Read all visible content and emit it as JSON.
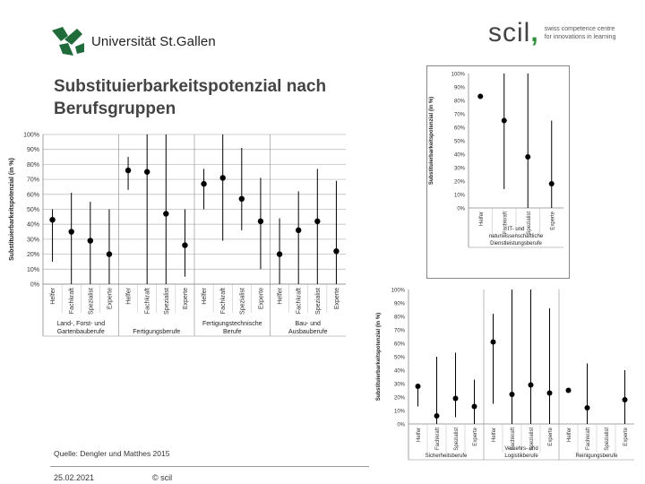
{
  "header": {
    "university_name": "Universität St.Gallen",
    "scil_word": "scil",
    "scil_tagline": "swiss competence centre for innovations in learning"
  },
  "slide": {
    "title_line1": "Substituierbarkeitspotenzial nach",
    "title_line2": "Berufsgruppen"
  },
  "footer": {
    "source": "Quelle: Dengler und Matthes 2015",
    "date": "25.02.2021",
    "copyright": "© scil"
  },
  "colors": {
    "grid": "#bfbfbf",
    "marker": "#000000",
    "scil_accent": "#2f8f3a",
    "usg_green": "#1f6b3a"
  },
  "chart_data": [
    {
      "type": "scatter",
      "ylabel": "Substituierbarkeitspotenzial (in %)",
      "ylim": [
        0,
        100
      ],
      "yticks": [
        "0%",
        "10%",
        "20%",
        "30%",
        "40%",
        "50%",
        "60%",
        "70%",
        "80%",
        "90%",
        "100%"
      ],
      "grid": true,
      "groups": [
        {
          "label": [
            "Land-, Forst- und",
            "Gartenbauberufe"
          ],
          "items": [
            {
              "level": "Helfer",
              "value": 43,
              "low": 15,
              "high": 50
            },
            {
              "level": "Fachkraft",
              "value": 35,
              "low": 0,
              "high": 61
            },
            {
              "level": "Spezialist",
              "value": 29,
              "low": 0,
              "high": 55
            },
            {
              "level": "Experte",
              "value": 20,
              "low": 0,
              "high": 50
            }
          ]
        },
        {
          "label": [
            "Fertigungsberufe"
          ],
          "items": [
            {
              "level": "Helfer",
              "value": 76,
              "low": 63,
              "high": 85
            },
            {
              "level": "Fachkraft",
              "value": 75,
              "low": 0,
              "high": 100
            },
            {
              "level": "Spezialist",
              "value": 47,
              "low": 0,
              "high": 100
            },
            {
              "level": "Experte",
              "value": 26,
              "low": 5,
              "high": 50
            }
          ]
        },
        {
          "label": [
            "Fertigungstechnische",
            "Berufe"
          ],
          "items": [
            {
              "level": "Helfer",
              "value": 67,
              "low": 50,
              "high": 77
            },
            {
              "level": "Fachkraft",
              "value": 71,
              "low": 29,
              "high": 100
            },
            {
              "level": "Spezialist",
              "value": 57,
              "low": 36,
              "high": 91
            },
            {
              "level": "Experte",
              "value": 42,
              "low": 10,
              "high": 71
            }
          ]
        },
        {
          "label": [
            "Bau- und",
            "Ausbauberufe"
          ],
          "items": [
            {
              "level": "Helfer",
              "value": 20,
              "low": 0,
              "high": 44
            },
            {
              "level": "Fachkraft",
              "value": 36,
              "low": 0,
              "high": 62
            },
            {
              "level": "Spezialist",
              "value": 42,
              "low": 0,
              "high": 77
            },
            {
              "level": "Experte",
              "value": 22,
              "low": 0,
              "high": 69
            }
          ]
        }
      ]
    },
    {
      "type": "scatter",
      "ylabel": "Substituierbarkeitspotenzial (in %)",
      "ylim": [
        0,
        100
      ],
      "yticks": [
        "0%",
        "10%",
        "20%",
        "30%",
        "40%",
        "50%",
        "60%",
        "70%",
        "80%",
        "90%",
        "100%"
      ],
      "grid": false,
      "groups": [
        {
          "label": [
            "IT- und",
            "naturwissenschaftliche",
            "Dienstleistungsberufe"
          ],
          "items": [
            {
              "level": "Helfer",
              "value": 83,
              "low": 83,
              "high": 83
            },
            {
              "level": "Fachkraft",
              "value": 65,
              "low": 14,
              "high": 100
            },
            {
              "level": "Spezialist",
              "value": 38,
              "low": 0,
              "high": 100
            },
            {
              "level": "Experte",
              "value": 18,
              "low": 0,
              "high": 65
            }
          ]
        }
      ]
    },
    {
      "type": "scatter",
      "ylabel": "Substituierbarkeitspotenzial (in %)",
      "ylim": [
        0,
        100
      ],
      "yticks": [
        "0%",
        "10%",
        "20%",
        "30%",
        "40%",
        "50%",
        "60%",
        "70%",
        "80%",
        "90%",
        "100%"
      ],
      "grid": false,
      "groups": [
        {
          "label": [
            "Sicherheitsberufe"
          ],
          "items": [
            {
              "level": "Helfer",
              "value": 28,
              "low": 13,
              "high": 30
            },
            {
              "level": "Fachkraft",
              "value": 6,
              "low": 0,
              "high": 50
            },
            {
              "level": "Spezialist",
              "value": 19,
              "low": 5,
              "high": 53
            },
            {
              "level": "Experte",
              "value": 13,
              "low": 0,
              "high": 33
            }
          ]
        },
        {
          "label": [
            "Verkehrs- und",
            "Logistikberufe"
          ],
          "items": [
            {
              "level": "Helfer",
              "value": 61,
              "low": 15,
              "high": 82
            },
            {
              "level": "Fachkraft",
              "value": 22,
              "low": 0,
              "high": 100
            },
            {
              "level": "Spezialist",
              "value": 29,
              "low": 0,
              "high": 100
            },
            {
              "level": "Experte",
              "value": 23,
              "low": 0,
              "high": 86
            }
          ]
        },
        {
          "label": [
            "Reinigungsberufe"
          ],
          "items": [
            {
              "level": "Helfer",
              "value": 25,
              "low": 25,
              "high": 25
            },
            {
              "level": "Fachkraft",
              "value": 12,
              "low": 0,
              "high": 45
            },
            {
              "level": "Spezialist",
              "value": 0,
              "low": 0,
              "high": 0,
              "hidden": true
            },
            {
              "level": "Experte",
              "value": 18,
              "low": 0,
              "high": 40
            }
          ]
        }
      ]
    }
  ]
}
